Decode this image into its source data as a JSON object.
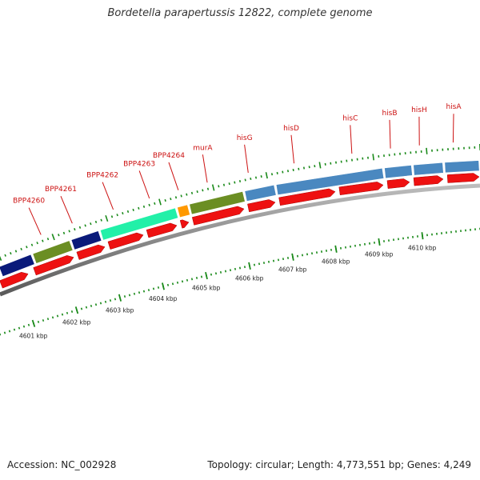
{
  "title": "Bordetella parapertussis 12822, complete genome",
  "footer": {
    "accession": "Accession: NC_002928",
    "stats": "Topology: circular; Length: 4,773,551 bp; Genes: 4,249"
  },
  "gene_labels": [
    "BPP4260",
    "BPP4261",
    "BPP4262",
    "BPP4263",
    "BPP4264",
    "murA",
    "hisG",
    "hisD",
    "hisC",
    "hisB",
    "hisH",
    "hisA"
  ],
  "kbp_labels": [
    "4601 kbp",
    "4602 kbp",
    "4603 kbp",
    "4604 kbp",
    "4605 kbp",
    "4606 kbp",
    "4607 kbp",
    "4608 kbp",
    "4609 kbp",
    "4610 kbp"
  ],
  "colors": {
    "gene_label": "#cc1111",
    "feature_arrow": "#ee1111",
    "dark_blue": "#0a1a7a",
    "olive": "#6b8e23",
    "aqua": "#22f0a8",
    "orange": "#ff9900",
    "steel_blue": "#4a88c0",
    "axis_gray": "#888888",
    "tick_green": "#1a8a1a"
  },
  "feature_segments": [
    {
      "name": "dark-blue-segment",
      "color_key": "dark_blue",
      "t0": 0.0,
      "t1": 0.07
    },
    {
      "name": "olive-segment",
      "color_key": "olive",
      "t0": 0.07,
      "t1": 0.15
    },
    {
      "name": "dark-blue-segment",
      "color_key": "dark_blue",
      "t0": 0.15,
      "t1": 0.21
    },
    {
      "name": "aqua-segment",
      "color_key": "aqua",
      "t0": 0.21,
      "t1": 0.37
    },
    {
      "name": "orange-segment",
      "color_key": "orange",
      "t0": 0.37,
      "t1": 0.395
    },
    {
      "name": "olive-segment",
      "color_key": "olive",
      "t0": 0.395,
      "t1": 0.51
    },
    {
      "name": "steel-blue-segment",
      "color_key": "steel_blue",
      "t0": 0.51,
      "t1": 0.575
    },
    {
      "name": "steel-blue-segment",
      "color_key": "steel_blue",
      "t0": 0.575,
      "t1": 0.8
    },
    {
      "name": "steel-blue-segment",
      "color_key": "steel_blue",
      "t0": 0.8,
      "t1": 0.86
    },
    {
      "name": "steel-blue-segment",
      "color_key": "steel_blue",
      "t0": 0.86,
      "t1": 0.925
    },
    {
      "name": "steel-blue-segment",
      "color_key": "steel_blue",
      "t0": 0.925,
      "t1": 1.0
    }
  ]
}
